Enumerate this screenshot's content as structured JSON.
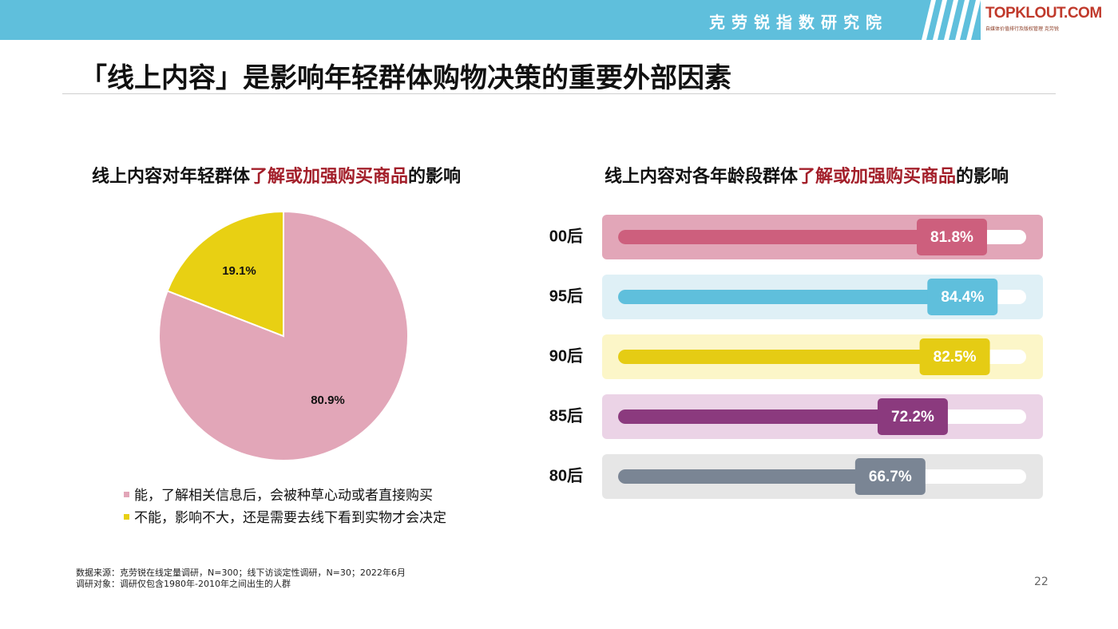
{
  "header": {
    "brand_title": "克劳锐指数研究院",
    "logo_text": "TOPKLOUT.COM",
    "logo_subtext": "自媒体价值排行及版权管理 克劳锐"
  },
  "page": {
    "title": "「线上内容」是影响年轻群体购物决策的重要外部因素",
    "page_number": "22"
  },
  "pie": {
    "title_prefix": "线上内容对年轻群体",
    "title_highlight": "了解或加强购买商品",
    "title_suffix": "的影响"
  },
  "bars": {
    "title_prefix": "线上内容对各年龄段群体",
    "title_highlight": "了解或加强购买商品",
    "title_suffix": "的影响"
  },
  "footnotes": {
    "source": "数据来源：克劳锐在线定量调研，N=300；线下访谈定性调研，N=30；2022年6月",
    "subject": "调研对象：调研仅包含1980年-2010年之间出生的人群"
  },
  "colors": {
    "accent_red": "#a31f2a",
    "header_blue": "#5fbfdc"
  },
  "chart_data": [
    {
      "type": "pie",
      "slices": [
        {
          "label": "能，了解相关信息后，会被种草心动或者直接购买",
          "value": 80.9,
          "display": "80.9%",
          "color": "#e2a6b8"
        },
        {
          "label": "不能，影响不大，还是需要去线下看到实物才会决定",
          "value": 19.1,
          "display": "19.1%",
          "color": "#e8d013"
        }
      ]
    },
    {
      "type": "bar",
      "orientation": "horizontal",
      "ylim": [
        0,
        100
      ],
      "categories": [
        "00后",
        "95后",
        "90后",
        "85后",
        "80后"
      ],
      "values": [
        81.8,
        84.4,
        82.5,
        72.2,
        66.7
      ],
      "labels": [
        "81.8%",
        "84.4%",
        "82.5%",
        "72.2%",
        "66.7%"
      ],
      "colors": [
        "#cd5f7d",
        "#5fbfdc",
        "#e5cc14",
        "#8b3a7e",
        "#7a8594"
      ],
      "band_colors": [
        "#e2a6b8",
        "#dff0f6",
        "#fcf6c8",
        "#ebd3e6",
        "#e6e6e6"
      ]
    }
  ]
}
